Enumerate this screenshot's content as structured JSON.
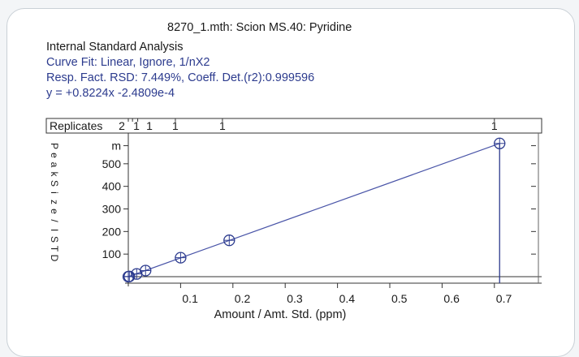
{
  "header": {
    "title": "8270_1.mth:  Scion MS.40:  Pyridine",
    "analysis": "Internal Standard Analysis",
    "curve_fit": "Curve Fit: Linear, Ignore, 1/nX2",
    "resp_fact": "Resp. Fact. RSD:  7.449%,     Coeff. Det.(r2):0.999596",
    "equation": "y =  +0.8224x -2.4809e-4"
  },
  "colors": {
    "blue": "#2c3b8e",
    "axis": "#333333",
    "line": "#4a55a8",
    "border": "#c9d0d6"
  },
  "chart_data": {
    "type": "scatter",
    "xlabel": "Amount / Amt. Std. (ppm)",
    "ylabel": "Peak Size / ISTD",
    "xlim": [
      0,
      0.75
    ],
    "ylim": [
      0,
      600
    ],
    "x_ticks": [
      "0.1",
      "0.2",
      "0.3",
      "0.4",
      "0.5",
      "0.6",
      "0.7"
    ],
    "x_tick_values": [
      0.1,
      0.2,
      0.3,
      0.4,
      0.5,
      0.6,
      0.7
    ],
    "y_ticks": [
      "100",
      "200",
      "300",
      "400",
      "500",
      "m"
    ],
    "y_tick_values": [
      100,
      200,
      300,
      400,
      500,
      580
    ],
    "replicates_label": "Replicates",
    "replicates": [
      {
        "x": 0.0,
        "count": "2"
      },
      {
        "x": 0.008,
        "count": "1"
      },
      {
        "x": 0.018,
        "count": "1"
      },
      {
        "x": 0.09,
        "count": "1"
      },
      {
        "x": 0.18,
        "count": "1"
      },
      {
        "x": 0.7,
        "count": "1"
      }
    ],
    "points": [
      {
        "x": 0.0,
        "y": 0
      },
      {
        "x": 0.002,
        "y": 1
      },
      {
        "x": 0.016,
        "y": 12
      },
      {
        "x": 0.033,
        "y": 27
      },
      {
        "x": 0.1,
        "y": 84
      },
      {
        "x": 0.193,
        "y": 161
      },
      {
        "x": 0.71,
        "y": 590
      }
    ],
    "fit": {
      "slope": 0.8224,
      "intercept": -0.00024809
    },
    "fit_x_range": [
      0,
      0.71
    ]
  }
}
